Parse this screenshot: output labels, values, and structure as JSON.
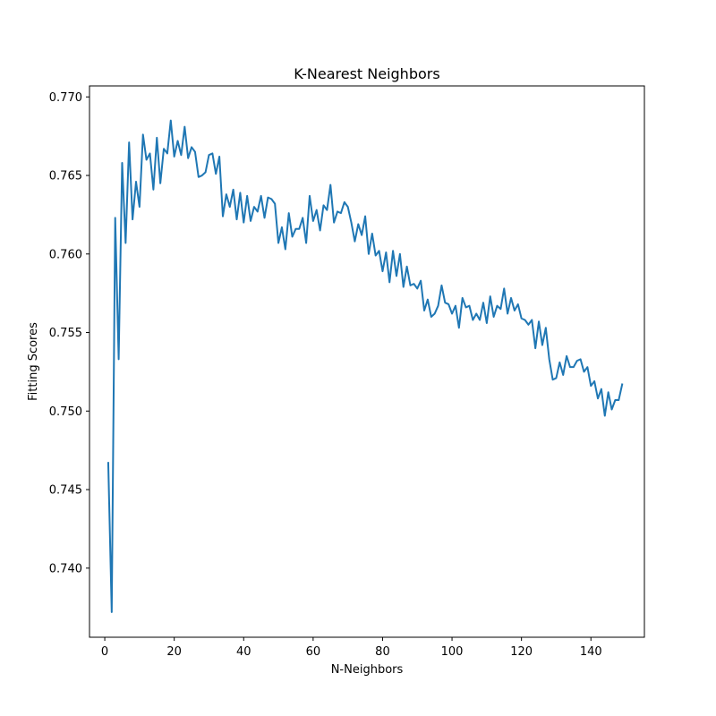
{
  "chart_data": {
    "type": "line",
    "title": "K-Nearest Neighbors",
    "xlabel": "N-Neighbors",
    "ylabel": "Fitting Scores",
    "xlim": [
      -4.4,
      155.4
    ],
    "ylim": [
      0.7356,
      0.7707
    ],
    "xticks": [
      0,
      20,
      40,
      60,
      80,
      100,
      120,
      140
    ],
    "yticks": [
      0.74,
      0.745,
      0.75,
      0.755,
      0.76,
      0.765,
      0.77
    ],
    "xtick_labels": [
      "0",
      "20",
      "40",
      "60",
      "80",
      "100",
      "120",
      "140"
    ],
    "ytick_labels": [
      "0.740",
      "0.745",
      "0.750",
      "0.755",
      "0.760",
      "0.765",
      "0.770"
    ],
    "grid": false,
    "line_color": "#1f77b4",
    "series": [
      {
        "x": [
          1,
          2,
          3,
          4,
          5,
          6,
          7,
          8,
          9,
          10,
          11,
          12,
          13,
          14,
          15,
          16,
          17,
          18,
          19,
          20,
          21,
          22,
          23,
          24,
          25,
          26,
          27,
          28,
          29,
          30,
          31,
          32,
          33,
          34,
          35,
          36,
          37,
          38,
          39,
          40,
          41,
          42,
          43,
          44,
          45,
          46,
          47,
          48,
          49,
          50,
          51,
          52,
          53,
          54,
          55,
          56,
          57,
          58,
          59,
          60,
          61,
          62,
          63,
          64,
          65,
          66,
          67,
          68,
          69,
          70,
          71,
          72,
          73,
          74,
          75,
          76,
          77,
          78,
          79,
          80,
          81,
          82,
          83,
          84,
          85,
          86,
          87,
          88,
          89,
          90,
          91,
          92,
          93,
          94,
          95,
          96,
          97,
          98,
          99,
          100,
          101,
          102,
          103,
          104,
          105,
          106,
          107,
          108,
          109,
          110,
          111,
          112,
          113,
          114,
          115,
          116,
          117,
          118,
          119,
          120,
          121,
          122,
          123,
          124,
          125,
          126,
          127,
          128,
          129,
          130,
          131,
          132,
          133,
          134,
          135,
          136,
          137,
          138,
          139,
          140,
          141,
          142,
          143,
          144,
          145,
          146,
          147,
          148,
          149
        ],
        "values": [
          0.7467,
          0.7372,
          0.7623,
          0.7533,
          0.7658,
          0.7607,
          0.7671,
          0.7622,
          0.7646,
          0.763,
          0.7676,
          0.766,
          0.7664,
          0.7641,
          0.7674,
          0.7645,
          0.7667,
          0.7664,
          0.7685,
          0.7662,
          0.7672,
          0.7663,
          0.7681,
          0.7661,
          0.7668,
          0.7665,
          0.7649,
          0.765,
          0.7652,
          0.7663,
          0.7664,
          0.7651,
          0.7662,
          0.7624,
          0.7638,
          0.763,
          0.7641,
          0.7622,
          0.7639,
          0.762,
          0.7637,
          0.7621,
          0.763,
          0.7627,
          0.7637,
          0.7623,
          0.7636,
          0.7635,
          0.7632,
          0.7607,
          0.7617,
          0.7603,
          0.7626,
          0.7611,
          0.7616,
          0.7616,
          0.7623,
          0.7607,
          0.7637,
          0.7621,
          0.7628,
          0.7615,
          0.7631,
          0.7628,
          0.7644,
          0.762,
          0.7627,
          0.7626,
          0.7633,
          0.763,
          0.762,
          0.7608,
          0.7619,
          0.7612,
          0.7624,
          0.76,
          0.7613,
          0.7599,
          0.7602,
          0.7589,
          0.7601,
          0.7582,
          0.7602,
          0.7586,
          0.76,
          0.7579,
          0.7592,
          0.758,
          0.7581,
          0.7578,
          0.7583,
          0.7564,
          0.7571,
          0.756,
          0.7562,
          0.7567,
          0.758,
          0.7569,
          0.7568,
          0.7562,
          0.7567,
          0.7553,
          0.7572,
          0.7566,
          0.7567,
          0.7558,
          0.7562,
          0.7558,
          0.7569,
          0.7556,
          0.7573,
          0.756,
          0.7567,
          0.7565,
          0.7578,
          0.7562,
          0.7572,
          0.7564,
          0.7568,
          0.7559,
          0.7558,
          0.7555,
          0.7558,
          0.754,
          0.7557,
          0.7542,
          0.7553,
          0.7533,
          0.752,
          0.7521,
          0.7531,
          0.7523,
          0.7535,
          0.7528,
          0.7528,
          0.7532,
          0.7533,
          0.7525,
          0.7528,
          0.7516,
          0.7519,
          0.7508,
          0.7514,
          0.7497,
          0.7512,
          0.7501,
          0.7507,
          0.7507,
          0.7517
        ]
      }
    ]
  }
}
